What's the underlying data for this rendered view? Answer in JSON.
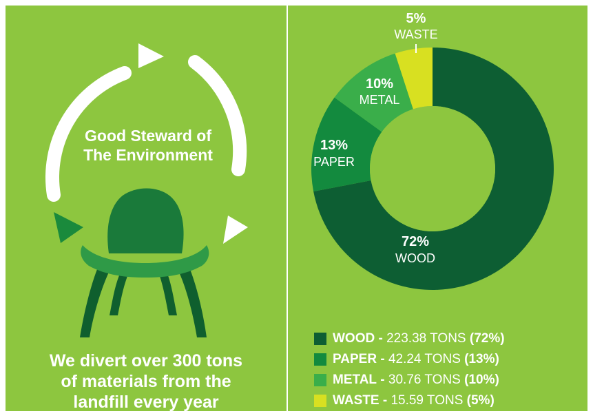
{
  "colors": {
    "background": "#8dc63f",
    "chair": "#1a7a3a",
    "chair_dark": "#0f5f2e",
    "chair_light": "#2f9a47",
    "arrow_white": "#ffffff",
    "text": "#ffffff"
  },
  "left_panel": {
    "headline_lines": [
      "Good Steward of",
      "The Environment"
    ],
    "tagline_lines": [
      "We divert over 300 tons",
      "of materials from the",
      "landfill every year"
    ],
    "icons": [
      "recycle-arrows-icon",
      "chair-icon"
    ]
  },
  "chart_data": {
    "type": "pie",
    "donut": true,
    "title": "",
    "slices": [
      {
        "label": "WOOD",
        "value": 72,
        "tons": 223.38,
        "color": "#0d5e33"
      },
      {
        "label": "PAPER",
        "value": 13,
        "tons": 42.24,
        "color": "#138a3e"
      },
      {
        "label": "METAL",
        "value": 10,
        "tons": 30.76,
        "color": "#3aae4a"
      },
      {
        "label": "WASTE",
        "value": 5,
        "tons": 15.59,
        "color": "#d8e021"
      }
    ],
    "data_labels": [
      {
        "pct": "72%",
        "name": "WOOD"
      },
      {
        "pct": "13%",
        "name": "PAPER"
      },
      {
        "pct": "10%",
        "name": "METAL"
      },
      {
        "pct": "5%",
        "name": "WASTE"
      }
    ],
    "legend_placement": "bottom",
    "legend": [
      {
        "name": "WOOD",
        "sep": " - ",
        "amount": "223.38 TONS ",
        "pct": "(72%)"
      },
      {
        "name": "PAPER",
        "sep": " - ",
        "amount": "42.24 TONS ",
        "pct": "(13%)"
      },
      {
        "name": "METAL",
        "sep": " - ",
        "amount": "30.76 TONS ",
        "pct": "(10%)"
      },
      {
        "name": "WASTE",
        "sep": " - ",
        "amount": "15.59 TONS ",
        "pct": "(5%)"
      }
    ]
  }
}
